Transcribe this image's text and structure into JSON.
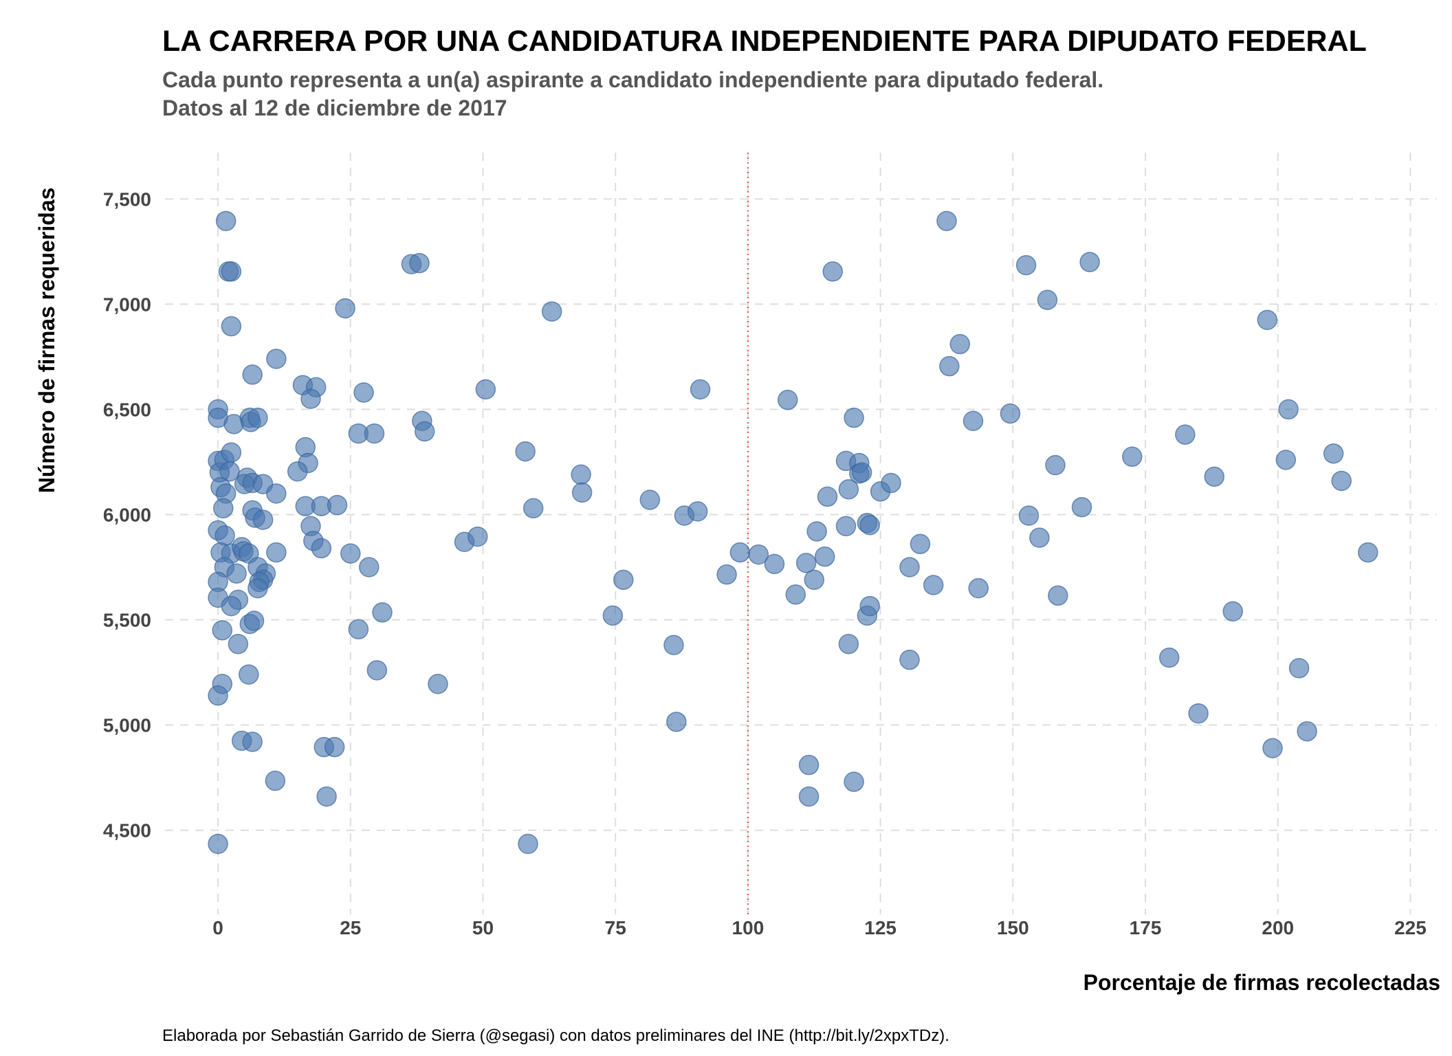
{
  "chart_data": {
    "type": "scatter",
    "title": "LA CARRERA POR UNA CANDIDATURA INDEPENDIENTE PARA DIPUDATO FEDERAL",
    "subtitle": [
      "Cada punto representa a un(a) aspirante a candidato independiente para diputado federal.",
      "Datos al 12 de diciembre de 2017"
    ],
    "xlabel": "Porcentaje de firmas recolectadas",
    "ylabel": "Número de firmas requeridas",
    "caption": "Elaborada por Sebastián Garrido de Sierra (@segasi) con datos preliminares del INE (http://bit.ly/2xpxTDz).",
    "xlim": [
      -10,
      230
    ],
    "ylim": [
      4100,
      7720
    ],
    "x_ticks": [
      0,
      25,
      50,
      75,
      100,
      125,
      150,
      175,
      200,
      225
    ],
    "x_tick_labels": [
      "0",
      "25",
      "50",
      "75",
      "100",
      "125",
      "150",
      "175",
      "200",
      "225"
    ],
    "y_ticks": [
      4500,
      5000,
      5500,
      6000,
      6500,
      7000,
      7500
    ],
    "y_tick_labels": [
      "4,500",
      "5,000",
      "5,500",
      "6,000",
      "6,500",
      "7,000",
      "7,500"
    ],
    "reference_line": {
      "x": 100,
      "color": "#e06666",
      "style": "dotted"
    },
    "grid": true,
    "colors": {
      "points": "#4a78b0",
      "reference": "#e06666"
    },
    "points": [
      {
        "x": 1.5,
        "y": 7395
      },
      {
        "x": 2,
        "y": 7155
      },
      {
        "x": 2.5,
        "y": 7155
      },
      {
        "x": 2.5,
        "y": 6895
      },
      {
        "x": 0,
        "y": 6500
      },
      {
        "x": 0,
        "y": 6460
      },
      {
        "x": 3,
        "y": 6430
      },
      {
        "x": 6,
        "y": 6460
      },
      {
        "x": 6.2,
        "y": 6440
      },
      {
        "x": 7.5,
        "y": 6460
      },
      {
        "x": 6.5,
        "y": 6665
      },
      {
        "x": 11,
        "y": 6740
      },
      {
        "x": 0,
        "y": 6255
      },
      {
        "x": 0.3,
        "y": 6200
      },
      {
        "x": 1.2,
        "y": 6260
      },
      {
        "x": 2.5,
        "y": 6295
      },
      {
        "x": 2.2,
        "y": 6205
      },
      {
        "x": 0.5,
        "y": 6130
      },
      {
        "x": 1.5,
        "y": 6100
      },
      {
        "x": 1,
        "y": 6030
      },
      {
        "x": 5.5,
        "y": 6175
      },
      {
        "x": 5,
        "y": 6145
      },
      {
        "x": 6.5,
        "y": 6150
      },
      {
        "x": 8.5,
        "y": 6145
      },
      {
        "x": 11,
        "y": 6100
      },
      {
        "x": 6.5,
        "y": 6020
      },
      {
        "x": 7,
        "y": 5985
      },
      {
        "x": 8.5,
        "y": 5975
      },
      {
        "x": 0,
        "y": 5925
      },
      {
        "x": 1.3,
        "y": 5900
      },
      {
        "x": 0.5,
        "y": 5820
      },
      {
        "x": 2.5,
        "y": 5815
      },
      {
        "x": 4.5,
        "y": 5845
      },
      {
        "x": 4.8,
        "y": 5825
      },
      {
        "x": 5.8,
        "y": 5815
      },
      {
        "x": 1.2,
        "y": 5750
      },
      {
        "x": 3.5,
        "y": 5720
      },
      {
        "x": 7.5,
        "y": 5750
      },
      {
        "x": 9,
        "y": 5720
      },
      {
        "x": 8.5,
        "y": 5690
      },
      {
        "x": 7.8,
        "y": 5680
      },
      {
        "x": 7.5,
        "y": 5650
      },
      {
        "x": 11,
        "y": 5820
      },
      {
        "x": 0,
        "y": 5680
      },
      {
        "x": 0,
        "y": 5605
      },
      {
        "x": 3.8,
        "y": 5595
      },
      {
        "x": 2.5,
        "y": 5565
      },
      {
        "x": 6,
        "y": 5480
      },
      {
        "x": 6.8,
        "y": 5495
      },
      {
        "x": 0.8,
        "y": 5450
      },
      {
        "x": 3.8,
        "y": 5385
      },
      {
        "x": 5.8,
        "y": 5240
      },
      {
        "x": 0.8,
        "y": 5195
      },
      {
        "x": 0,
        "y": 5140
      },
      {
        "x": 4.5,
        "y": 4925
      },
      {
        "x": 6.5,
        "y": 4920
      },
      {
        "x": 10.8,
        "y": 4735
      },
      {
        "x": 0,
        "y": 4435
      },
      {
        "x": 24,
        "y": 6980
      },
      {
        "x": 16,
        "y": 6615
      },
      {
        "x": 18.5,
        "y": 6605
      },
      {
        "x": 17.5,
        "y": 6550
      },
      {
        "x": 27.5,
        "y": 6580
      },
      {
        "x": 16.5,
        "y": 6320
      },
      {
        "x": 17,
        "y": 6245
      },
      {
        "x": 15,
        "y": 6205
      },
      {
        "x": 26.5,
        "y": 6385
      },
      {
        "x": 29.5,
        "y": 6385
      },
      {
        "x": 16.5,
        "y": 6040
      },
      {
        "x": 19.5,
        "y": 6040
      },
      {
        "x": 22.5,
        "y": 6045
      },
      {
        "x": 17.5,
        "y": 5945
      },
      {
        "x": 18,
        "y": 5875
      },
      {
        "x": 19.5,
        "y": 5840
      },
      {
        "x": 25,
        "y": 5815
      },
      {
        "x": 28.5,
        "y": 5750
      },
      {
        "x": 26.5,
        "y": 5455
      },
      {
        "x": 31,
        "y": 5535
      },
      {
        "x": 30,
        "y": 5260
      },
      {
        "x": 20,
        "y": 4895
      },
      {
        "x": 22,
        "y": 4895
      },
      {
        "x": 20.5,
        "y": 4660
      },
      {
        "x": 36.5,
        "y": 7190
      },
      {
        "x": 38,
        "y": 7195
      },
      {
        "x": 38.5,
        "y": 6445
      },
      {
        "x": 39,
        "y": 6395
      },
      {
        "x": 50.5,
        "y": 6595
      },
      {
        "x": 46.5,
        "y": 5870
      },
      {
        "x": 49,
        "y": 5895
      },
      {
        "x": 41.5,
        "y": 5195
      },
      {
        "x": 63,
        "y": 6965
      },
      {
        "x": 58,
        "y": 6300
      },
      {
        "x": 59.5,
        "y": 6030
      },
      {
        "x": 68.5,
        "y": 6190
      },
      {
        "x": 68.7,
        "y": 6105
      },
      {
        "x": 74.5,
        "y": 5520
      },
      {
        "x": 76.5,
        "y": 5690
      },
      {
        "x": 58.5,
        "y": 4435
      },
      {
        "x": 81.5,
        "y": 6070
      },
      {
        "x": 88,
        "y": 5995
      },
      {
        "x": 90.5,
        "y": 6015
      },
      {
        "x": 91,
        "y": 6595
      },
      {
        "x": 96,
        "y": 5715
      },
      {
        "x": 86,
        "y": 5380
      },
      {
        "x": 86.5,
        "y": 5015
      },
      {
        "x": 98.5,
        "y": 5820
      },
      {
        "x": 102,
        "y": 5810
      },
      {
        "x": 105,
        "y": 5765
      },
      {
        "x": 107.5,
        "y": 6545
      },
      {
        "x": 109,
        "y": 5620
      },
      {
        "x": 111,
        "y": 5770
      },
      {
        "x": 112.5,
        "y": 5690
      },
      {
        "x": 113,
        "y": 5920
      },
      {
        "x": 114.5,
        "y": 5800
      },
      {
        "x": 115,
        "y": 6085
      },
      {
        "x": 116,
        "y": 7155
      },
      {
        "x": 118.5,
        "y": 6255
      },
      {
        "x": 119,
        "y": 6120
      },
      {
        "x": 118.5,
        "y": 5945
      },
      {
        "x": 120,
        "y": 6460
      },
      {
        "x": 121,
        "y": 6245
      },
      {
        "x": 121,
        "y": 6195
      },
      {
        "x": 121.5,
        "y": 6200
      },
      {
        "x": 122.5,
        "y": 5960
      },
      {
        "x": 123,
        "y": 5950
      },
      {
        "x": 125,
        "y": 6110
      },
      {
        "x": 127,
        "y": 6150
      },
      {
        "x": 122.5,
        "y": 5520
      },
      {
        "x": 123,
        "y": 5565
      },
      {
        "x": 119,
        "y": 5385
      },
      {
        "x": 111.5,
        "y": 4810
      },
      {
        "x": 111.5,
        "y": 4660
      },
      {
        "x": 120,
        "y": 4730
      },
      {
        "x": 130.5,
        "y": 5750
      },
      {
        "x": 132.5,
        "y": 5860
      },
      {
        "x": 135,
        "y": 5665
      },
      {
        "x": 130.5,
        "y": 5310
      },
      {
        "x": 137.5,
        "y": 7395
      },
      {
        "x": 140,
        "y": 6810
      },
      {
        "x": 138,
        "y": 6705
      },
      {
        "x": 142.5,
        "y": 6445
      },
      {
        "x": 149.5,
        "y": 6480
      },
      {
        "x": 143.5,
        "y": 5650
      },
      {
        "x": 152.5,
        "y": 7185
      },
      {
        "x": 156.5,
        "y": 7020
      },
      {
        "x": 153,
        "y": 5995
      },
      {
        "x": 155,
        "y": 5890
      },
      {
        "x": 158,
        "y": 6235
      },
      {
        "x": 158.5,
        "y": 5615
      },
      {
        "x": 163,
        "y": 6035
      },
      {
        "x": 164.5,
        "y": 7200
      },
      {
        "x": 172.5,
        "y": 6275
      },
      {
        "x": 182.5,
        "y": 6380
      },
      {
        "x": 188,
        "y": 6180
      },
      {
        "x": 179.5,
        "y": 5320
      },
      {
        "x": 185,
        "y": 5055
      },
      {
        "x": 191.5,
        "y": 5540
      },
      {
        "x": 198,
        "y": 6925
      },
      {
        "x": 202,
        "y": 6500
      },
      {
        "x": 201.5,
        "y": 6260
      },
      {
        "x": 204,
        "y": 5270
      },
      {
        "x": 205.5,
        "y": 4970
      },
      {
        "x": 199,
        "y": 4890
      },
      {
        "x": 210.5,
        "y": 6290
      },
      {
        "x": 212,
        "y": 6160
      },
      {
        "x": 217,
        "y": 5820
      }
    ]
  }
}
